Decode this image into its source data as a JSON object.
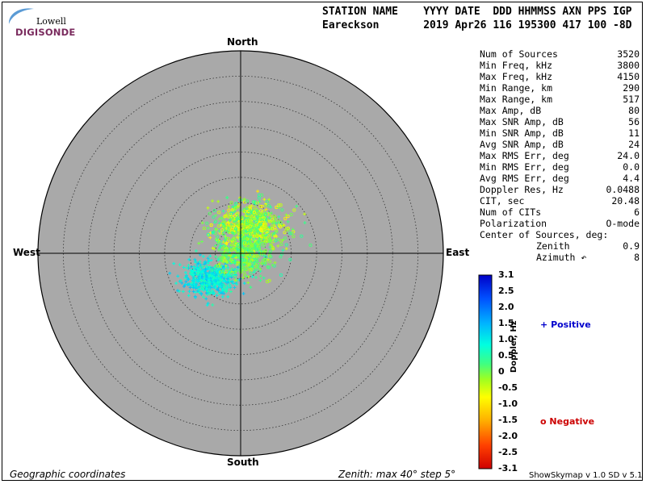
{
  "logo": {
    "line1": "Lowell",
    "line2": "DIGISONDE"
  },
  "header": {
    "columns_line": "STATION NAME    YYYY DATE  DDD HHMMSS AXN PPS IGP",
    "values_line": "Eareckson       2019 Apr26 116 195300 417 100 -8D"
  },
  "stats": [
    {
      "label": "Num of Sources",
      "value": "3520"
    },
    {
      "label": "Min Freq, kHz",
      "value": "3800"
    },
    {
      "label": "Max Freq, kHz",
      "value": "4150"
    },
    {
      "label": "Min Range, km",
      "value": "290"
    },
    {
      "label": "Max Range, km",
      "value": "517"
    },
    {
      "label": "Max Amp, dB",
      "value": "80"
    },
    {
      "label": "Max SNR Amp, dB",
      "value": "56"
    },
    {
      "label": "Min SNR Amp, dB",
      "value": "11"
    },
    {
      "label": "Avg SNR Amp, dB",
      "value": "24"
    },
    {
      "label": "Max RMS Err, deg",
      "value": "24.0"
    },
    {
      "label": "Min RMS Err, deg",
      "value": "0.0"
    },
    {
      "label": "Avg RMS Err, deg",
      "value": "4.4"
    },
    {
      "label": "Doppler Res, Hz",
      "value": "0.0488"
    },
    {
      "label": "CIT, sec",
      "value": "20.48"
    },
    {
      "label": "Num of CITs",
      "value": "6"
    },
    {
      "label": "Polarization",
      "value": "O-mode"
    }
  ],
  "center": {
    "label": "Center of Sources, deg:",
    "zenith_label": "Zenith",
    "zenith_value": "0.9",
    "azimuth_label": "Azimuth ↶",
    "azimuth_value": "8"
  },
  "directions": {
    "north": "North",
    "south": "South",
    "east": "East",
    "west": "West"
  },
  "colorbar": {
    "title": "Doppler, Hz",
    "ticks": [
      "3.1",
      "2.5",
      "2.0",
      "1.5",
      "1.0",
      "0.5",
      "0",
      "-0.5",
      "-1.0",
      "-1.5",
      "-2.0",
      "-2.5",
      "-3.1"
    ]
  },
  "legend": {
    "positive_marker": "+",
    "positive_label": "Positive",
    "negative_marker": "o",
    "negative_label": "Negative"
  },
  "footer": {
    "left": "Geographic coordinates",
    "center": "Zenith: max 40°  step 5°",
    "right": "ShowSkymap v 1.0   SD v 5.1"
  },
  "colors": {
    "plot_bg": "#a9a9a9",
    "positive": "#0000cc",
    "negative": "#cc0000",
    "grid": "#333333"
  },
  "chart_data": {
    "type": "scatter",
    "title": "",
    "projection": "polar skymap",
    "zenith_max_deg": 40,
    "zenith_step_deg": 5,
    "color_by": "Doppler, Hz",
    "color_range": [
      -3.1,
      3.1
    ],
    "marker_positive": "+",
    "marker_negative": "o",
    "clusters": [
      {
        "name": "northeast cluster",
        "center_east_deg": 2.0,
        "center_north_deg": 5.5,
        "spread_deg": [
          6.5,
          4.0
        ],
        "doppler_range": [
          -1.0,
          0.5
        ],
        "marker": "mixed"
      },
      {
        "name": "southwest cluster",
        "center_east_deg": -6.0,
        "center_north_deg": -5.0,
        "spread_deg": [
          5.0,
          3.0
        ],
        "doppler_range": [
          0.5,
          1.5
        ],
        "marker": "+"
      },
      {
        "name": "central cluster",
        "center_east_deg": 1.0,
        "center_north_deg": 0.0,
        "spread_deg": [
          5.5,
          4.0
        ],
        "doppler_range": [
          -0.5,
          0.6
        ],
        "marker": "mixed"
      }
    ]
  }
}
